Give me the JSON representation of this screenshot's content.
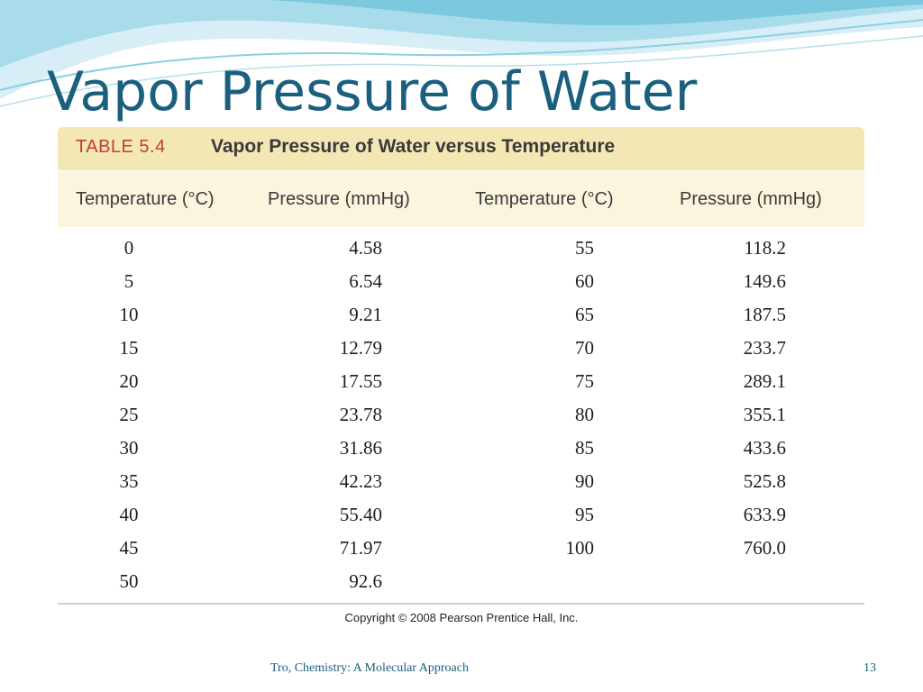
{
  "slide": {
    "title": "Vapor Pressure of Water",
    "footer_source": "Tro, Chemistry: A Molecular Approach",
    "slide_number": "13",
    "accent_color": "#1a5f7d"
  },
  "table": {
    "caption_number": "TABLE 5.4",
    "caption_title": "Vapor Pressure of Water versus Temperature",
    "headers": [
      "Temperature (°C)",
      "Pressure (mmHg)",
      "Temperature (°C)",
      "Pressure (mmHg)"
    ],
    "rows": [
      [
        "0",
        "4.58",
        "55",
        "118.2"
      ],
      [
        "5",
        "6.54",
        "60",
        "149.6"
      ],
      [
        "10",
        "9.21",
        "65",
        "187.5"
      ],
      [
        "15",
        "12.79",
        "70",
        "233.7"
      ],
      [
        "20",
        "17.55",
        "75",
        "289.1"
      ],
      [
        "25",
        "23.78",
        "80",
        "355.1"
      ],
      [
        "30",
        "31.86",
        "85",
        "433.6"
      ],
      [
        "35",
        "42.23",
        "90",
        "525.8"
      ],
      [
        "40",
        "55.40",
        "95",
        "633.9"
      ],
      [
        "45",
        "71.97",
        "100",
        "760.0"
      ],
      [
        "50",
        "92.6",
        "",
        ""
      ]
    ],
    "copyright": "Copyright © 2008 Pearson Prentice Hall, Inc."
  }
}
